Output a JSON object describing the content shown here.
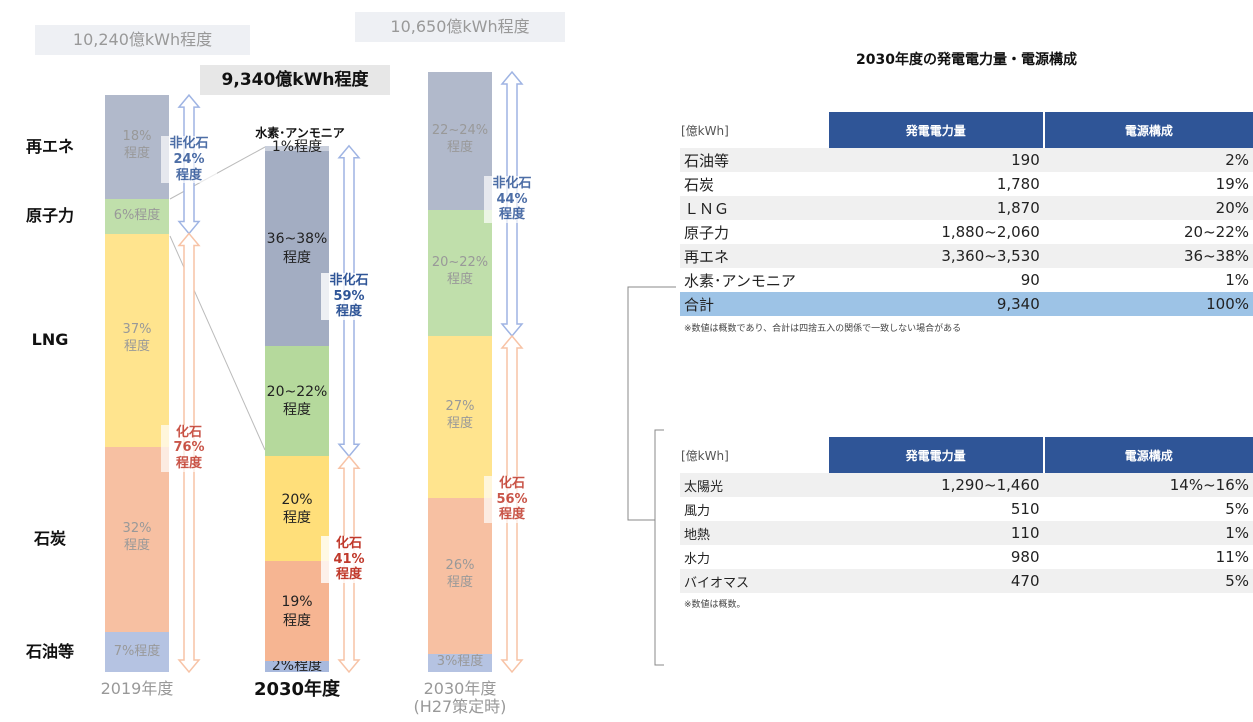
{
  "chart_data": {
    "type": "bar",
    "categories": [
      "2019年度",
      "2030年度",
      "2030年度\n(H27策定時)"
    ],
    "totals": [
      10240,
      9340,
      10650
    ],
    "total_labels": [
      "10,240億kWh程度",
      "9,340億kWh程度",
      "10,650億kWh程度"
    ],
    "series": [
      {
        "name": "石油等",
        "color": "#a8b9dd",
        "fossil": true,
        "values": [
          7,
          2,
          3
        ],
        "value_labels": [
          "7%程度",
          "2%程度",
          "3%程度"
        ]
      },
      {
        "name": "石炭",
        "color": "#f6b592",
        "fossil": true,
        "values": [
          32,
          19,
          26
        ],
        "value_labels": [
          "32%\n程度",
          "19%\n程度",
          "26%\n程度"
        ]
      },
      {
        "name": "LNG",
        "color": "#ffdf7a",
        "fossil": true,
        "values": [
          37,
          20,
          27
        ],
        "value_labels": [
          "37%\n程度",
          "20%\n程度",
          "27%\n程度"
        ]
      },
      {
        "name": "原子力",
        "color": "#b5d99c",
        "fossil": false,
        "values": [
          6,
          21,
          21
        ],
        "value_labels": [
          "6%程度",
          "20~22%\n程度",
          "20~22%\n程度"
        ]
      },
      {
        "name": "再エネ",
        "color": "#a3adc2",
        "fossil": false,
        "values": [
          18,
          37,
          23
        ],
        "value_labels": [
          "18%\n程度",
          "36~38%\n程度",
          "22~24%\n程度"
        ]
      },
      {
        "name": "水素･アンモニア",
        "color": "#c9cfdc",
        "fossil": false,
        "values": [
          null,
          1,
          null
        ],
        "value_labels": [
          null,
          "1%程度",
          null
        ]
      }
    ],
    "nonfossil_labels": [
      "非化石\n24%\n程度",
      "非化石\n59%\n程度",
      "非化石\n44%\n程度"
    ],
    "fossil_labels": [
      "化石\n76%\n程度",
      "化石\n41%\n程度",
      "化石\n56%\n程度"
    ]
  },
  "tables": [
    {
      "title": "2030年度の発電電力量・電源構成",
      "header": [
        "[億kWh]",
        "発電電力量",
        "電源構成"
      ],
      "rows": [
        [
          "石油等",
          "190",
          "2%"
        ],
        [
          "石炭",
          "1,780",
          "19%"
        ],
        [
          "ＬＮＧ",
          "1,870",
          "20%"
        ],
        [
          "原子力",
          "1,880~2,060",
          "20~22%"
        ],
        [
          "再エネ",
          "3,360~3,530",
          "36~38%"
        ],
        [
          "水素･アンモニア",
          "90",
          "1%"
        ],
        [
          "合計",
          "9,340",
          "100%"
        ]
      ],
      "note": "※数値は概数であり、合計は四捨五入の関係で一致しない場合がある"
    },
    {
      "header": [
        "[億kWh]",
        "発電電力量",
        "電源構成"
      ],
      "rows": [
        [
          "太陽光",
          "1,290~1,460",
          "14%~16%"
        ],
        [
          "風力",
          "510",
          "5%"
        ],
        [
          "地熱",
          "110",
          "1%"
        ],
        [
          "水力",
          "980",
          "11%"
        ],
        [
          "バイオマス",
          "470",
          "5%"
        ]
      ],
      "note": "※数値は概数。"
    }
  ]
}
